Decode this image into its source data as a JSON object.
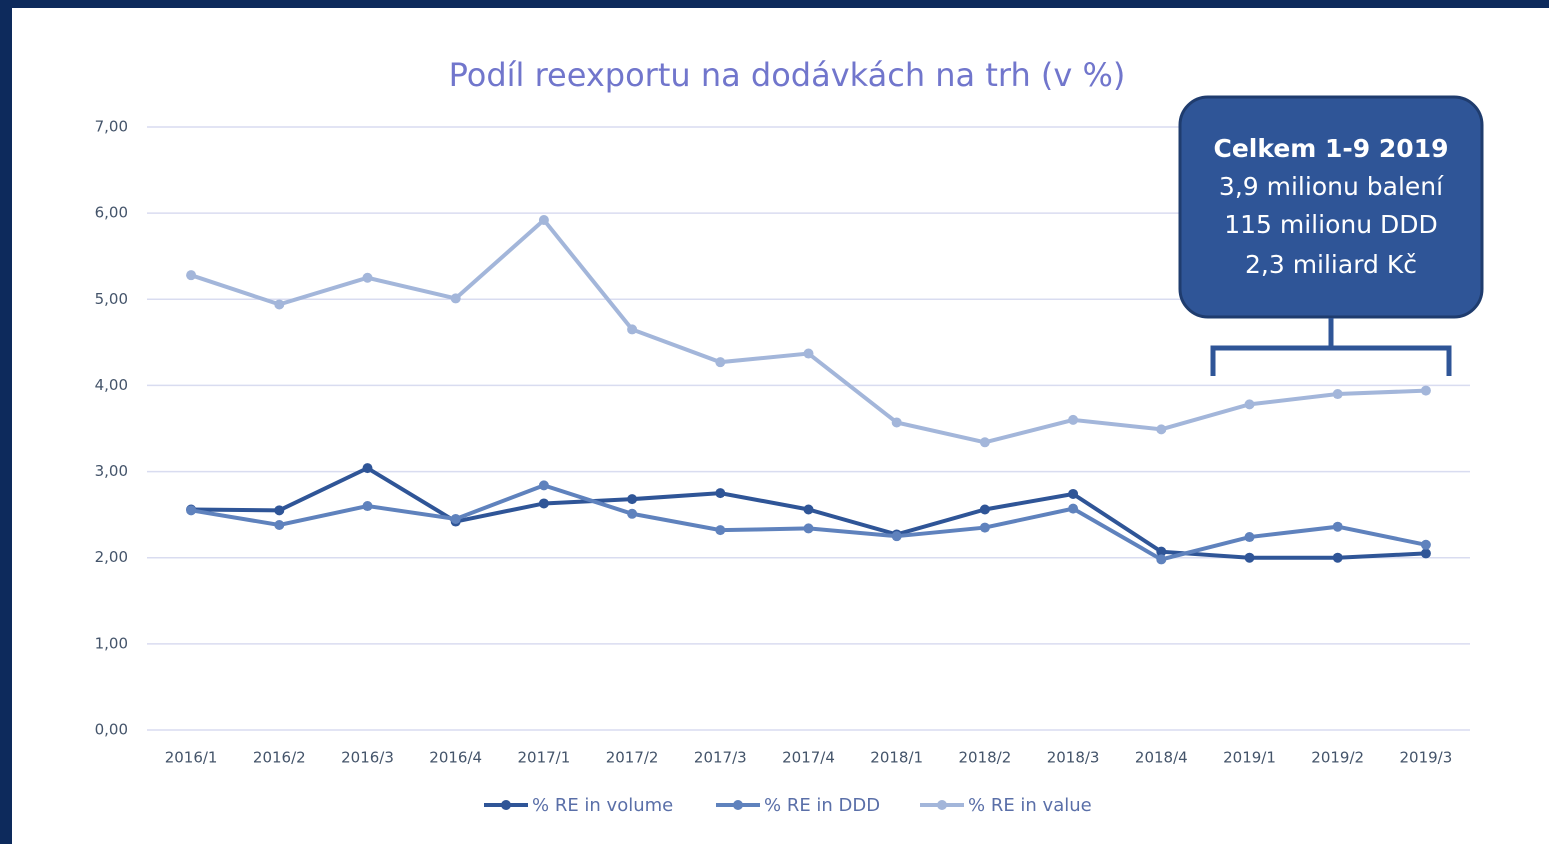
{
  "chart_data": {
    "type": "line",
    "title": "Podíl reexportu na dodávkách na trh (v %)",
    "categories": [
      "2016/1",
      "2016/2",
      "2016/3",
      "2016/4",
      "2017/1",
      "2017/2",
      "2017/3",
      "2017/4",
      "2018/1",
      "2018/2",
      "2018/3",
      "2018/4",
      "2019/1",
      "2019/2",
      "2019/3"
    ],
    "series": [
      {
        "name": "% RE in volume",
        "color": "#2f5597",
        "values": [
          2.56,
          2.55,
          3.04,
          2.42,
          2.63,
          2.68,
          2.75,
          2.56,
          2.27,
          2.56,
          2.74,
          2.07,
          2.0,
          2.0,
          2.05
        ]
      },
      {
        "name": "% RE in DDD",
        "color": "#5f82bd",
        "values": [
          2.55,
          2.38,
          2.6,
          2.45,
          2.84,
          2.51,
          2.32,
          2.34,
          2.25,
          2.35,
          2.57,
          1.98,
          2.24,
          2.36,
          2.15
        ]
      },
      {
        "name": "% RE in value",
        "color": "#a3b6da",
        "values": [
          5.28,
          4.94,
          5.25,
          5.01,
          5.92,
          4.65,
          4.27,
          4.37,
          3.57,
          3.34,
          3.6,
          3.49,
          3.78,
          3.9,
          3.94
        ]
      }
    ],
    "ylim": [
      0,
      7
    ],
    "yticks": [
      {
        "value": 0,
        "label": "0,00"
      },
      {
        "value": 1,
        "label": "1,00"
      },
      {
        "value": 2,
        "label": "2,00"
      },
      {
        "value": 3,
        "label": "3,00"
      },
      {
        "value": 4,
        "label": "4,00"
      },
      {
        "value": 5,
        "label": "5,00"
      },
      {
        "value": 6,
        "label": "6,00"
      },
      {
        "value": 7,
        "label": "7,00"
      }
    ],
    "grid": true,
    "legend": "bottom",
    "annotation": [
      "Celkem 1-9 2019",
      "3,9 milionu balení",
      "115 milionu DDD",
      "2,3 miliard Kč"
    ]
  }
}
